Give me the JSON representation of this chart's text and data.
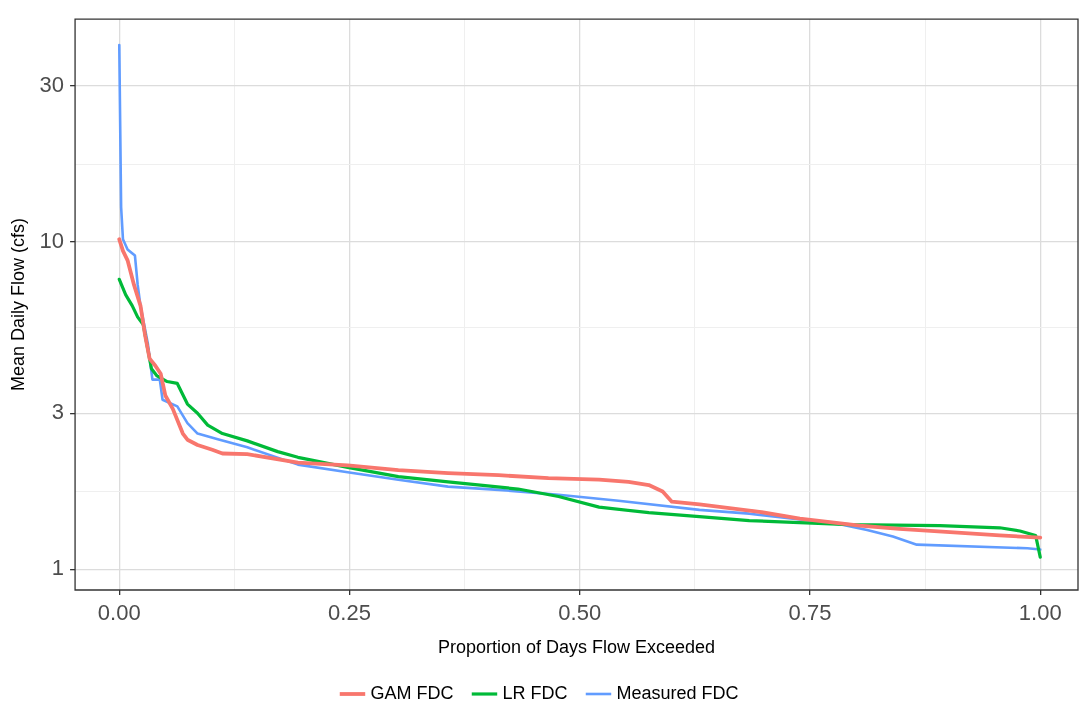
{
  "chart_data": {
    "type": "line",
    "xlabel": "Proportion of Days Flow Exceeded",
    "ylabel": "Mean Daily Flow (cfs)",
    "log": "y",
    "grid": true,
    "legend": "bottom",
    "marker": "none",
    "xlim": [
      -0.048,
      1.041
    ],
    "ylim": [
      0.865,
      48
    ],
    "xticks": [
      {
        "value": 0,
        "label": "0.00"
      },
      {
        "value": 0.125,
        "label": null
      },
      {
        "value": 0.25,
        "label": "0.25"
      },
      {
        "value": 0.375,
        "label": null
      },
      {
        "value": 0.5,
        "label": "0.50"
      },
      {
        "value": 0.625,
        "label": null
      },
      {
        "value": 0.75,
        "label": "0.75"
      },
      {
        "value": 0.875,
        "label": null
      },
      {
        "value": 1,
        "label": "1.00"
      }
    ],
    "yticks": [
      1,
      {
        "value": 1.732,
        "label": null
      },
      3,
      {
        "value": 5.477,
        "label": null
      },
      10,
      {
        "value": 17.32,
        "label": null
      },
      30
    ],
    "series": [
      {
        "name": "GAM FDC",
        "color": "#f8766d",
        "x": [
          0,
          0.004,
          0.009,
          0.016,
          0.023,
          0.028,
          0.033,
          0.039,
          0.045,
          0.05,
          0.058,
          0.069,
          0.074,
          0.085,
          0.101,
          0.112,
          0.139,
          0.194,
          0.248,
          0.303,
          0.357,
          0.412,
          0.466,
          0.521,
          0.553,
          0.575,
          0.59,
          0.6,
          0.63,
          0.695,
          0.739,
          0.804,
          0.847,
          0.902,
          0.956,
          1
        ],
        "values": [
          10.2,
          9.4,
          8.8,
          7.4,
          6.4,
          5.2,
          4.4,
          4.2,
          3.96,
          3.4,
          3.1,
          2.6,
          2.49,
          2.4,
          2.32,
          2.26,
          2.25,
          2.12,
          2.08,
          2.01,
          1.97,
          1.94,
          1.9,
          1.88,
          1.85,
          1.81,
          1.73,
          1.61,
          1.58,
          1.5,
          1.43,
          1.36,
          1.33,
          1.3,
          1.27,
          1.25
        ]
      },
      {
        "name": "LR FDC",
        "color": "#00ba38",
        "x": [
          0,
          0.007,
          0.014,
          0.02,
          0.026,
          0.031,
          0.035,
          0.041,
          0.052,
          0.063,
          0.074,
          0.085,
          0.096,
          0.112,
          0.139,
          0.172,
          0.194,
          0.248,
          0.303,
          0.357,
          0.433,
          0.477,
          0.521,
          0.575,
          0.63,
          0.684,
          0.793,
          0.891,
          0.956,
          0.978,
          0.995,
          1
        ],
        "values": [
          7.7,
          6.9,
          6.4,
          5.9,
          5.6,
          4.7,
          4.1,
          3.9,
          3.75,
          3.7,
          3.2,
          3.0,
          2.76,
          2.6,
          2.47,
          2.29,
          2.2,
          2.05,
          1.92,
          1.85,
          1.76,
          1.67,
          1.55,
          1.49,
          1.45,
          1.41,
          1.37,
          1.36,
          1.34,
          1.31,
          1.27,
          1.09
        ]
      },
      {
        "name": "Measured FDC",
        "color": "#619cff",
        "x": [
          0,
          0.002,
          0.004,
          0.009,
          0.017,
          0.02,
          0.023,
          0.031,
          0.036,
          0.044,
          0.047,
          0.063,
          0.074,
          0.085,
          0.107,
          0.139,
          0.194,
          0.248,
          0.303,
          0.357,
          0.412,
          0.477,
          0.542,
          0.63,
          0.684,
          0.739,
          0.785,
          0.812,
          0.84,
          0.866,
          0.986,
          1
        ],
        "values": [
          40,
          12.8,
          10.2,
          9.5,
          9.1,
          7.4,
          6.4,
          4.9,
          3.8,
          3.8,
          3.3,
          3.15,
          2.8,
          2.6,
          2.5,
          2.36,
          2.09,
          1.98,
          1.88,
          1.79,
          1.75,
          1.69,
          1.62,
          1.52,
          1.48,
          1.42,
          1.37,
          1.32,
          1.26,
          1.19,
          1.16,
          1.15
        ]
      }
    ]
  }
}
